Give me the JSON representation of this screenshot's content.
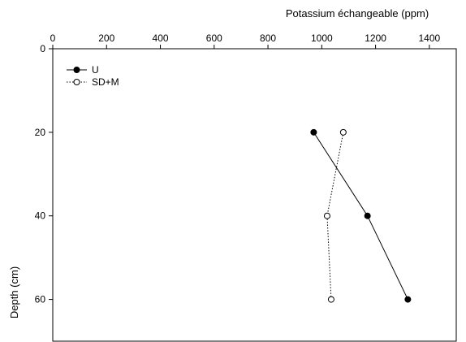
{
  "chart_data": {
    "type": "line",
    "xlabel": "Potassium échangeable (ppm)",
    "ylabel": "Depth (cm)",
    "xlim": [
      0,
      1500
    ],
    "ylim": [
      0,
      70
    ],
    "x_axis_position": "top",
    "y_axis_inverted": true,
    "x_ticks": [
      0,
      200,
      400,
      600,
      800,
      1000,
      1200,
      1400
    ],
    "y_ticks": [
      0,
      20,
      40,
      60
    ],
    "grid": false,
    "legend_position": "top-left",
    "series": [
      {
        "name": "U",
        "line_style": "solid",
        "marker": "filled-circle",
        "color": "#000000",
        "points": [
          {
            "x": 970,
            "y": 20
          },
          {
            "x": 1170,
            "y": 40
          },
          {
            "x": 1320,
            "y": 60
          }
        ]
      },
      {
        "name": "SD+M",
        "line_style": "dotted",
        "marker": "open-circle",
        "color": "#000000",
        "points": [
          {
            "x": 1080,
            "y": 20
          },
          {
            "x": 1020,
            "y": 40
          },
          {
            "x": 1035,
            "y": 60
          }
        ]
      }
    ]
  }
}
